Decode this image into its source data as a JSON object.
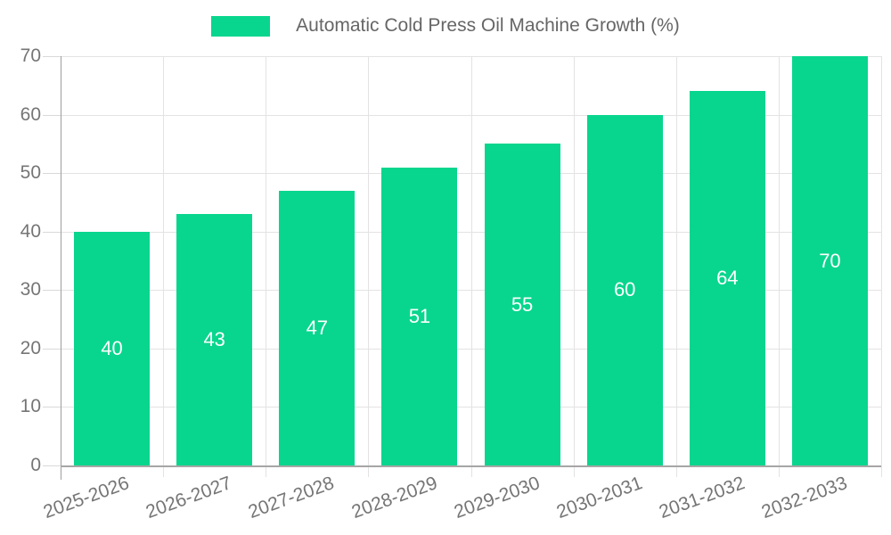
{
  "chart_data": {
    "type": "bar",
    "title": "Automatic Cold Press Oil Machine Growth (%)",
    "legend": {
      "position": "top",
      "label": "Automatic Cold Press Oil Machine Growth (%)"
    },
    "categories": [
      "2025-2026",
      "2026-2027",
      "2027-2028",
      "2028-2029",
      "2029-2030",
      "2030-2031",
      "2031-2032",
      "2032-2033"
    ],
    "values": [
      40,
      43,
      47,
      51,
      55,
      60,
      64,
      70
    ],
    "xlabel": "",
    "ylabel": "",
    "ylim": [
      0,
      70
    ],
    "yticks": [
      0,
      10,
      20,
      30,
      40,
      50,
      60,
      70
    ],
    "grid": true,
    "colors": {
      "bar": "#09d68e",
      "value_label": "#ffffff",
      "gridline": "#e3e3e3",
      "axis_line": "#9e9e9e",
      "baseline": "#a6a6a6",
      "tick": "#d9d9d9",
      "axis_text": "#757575",
      "title_text": "#666666"
    }
  }
}
